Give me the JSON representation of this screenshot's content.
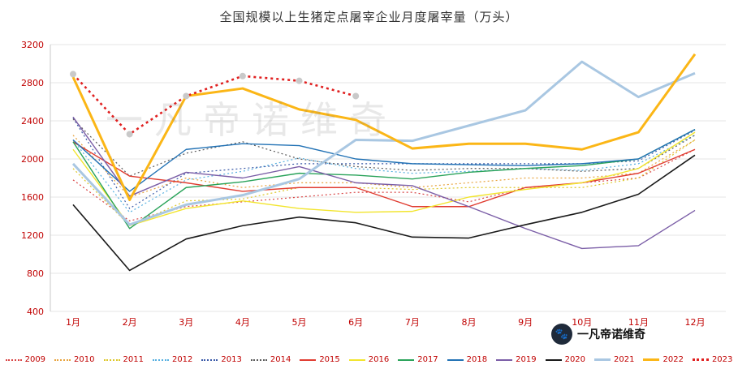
{
  "watermark": "一凡帝诺维奇",
  "logo": {
    "text": "一凡帝诺维奇",
    "icon_glyph": "🐾"
  },
  "chart_data": {
    "type": "line",
    "title": "全国规模以上生猪定点屠宰企业月度屠宰量（万头）",
    "categories": [
      "1月",
      "2月",
      "3月",
      "4月",
      "5月",
      "6月",
      "7月",
      "8月",
      "9月",
      "10月",
      "11月",
      "12月"
    ],
    "ylim": [
      400,
      3200
    ],
    "ytick_step": 400,
    "grid": true,
    "legend_position": "bottom",
    "axis_label_color": "#c00000",
    "gridline_color": "#e4e4e4",
    "series": [
      {
        "name": "2009",
        "color": "#d94545",
        "style": "dotted",
        "width": 1.2,
        "values": [
          1780,
          1350,
          1500,
          1550,
          1600,
          1650,
          1650,
          1550,
          1700,
          1750,
          1800,
          2100
        ]
      },
      {
        "name": "2010",
        "color": "#e8a33d",
        "style": "dotted",
        "width": 1.2,
        "values": [
          2250,
          1600,
          1800,
          1700,
          1750,
          1750,
          1700,
          1750,
          1800,
          1800,
          1850,
          2200
        ]
      },
      {
        "name": "2011",
        "color": "#ddc728",
        "style": "dotted",
        "width": 1.2,
        "values": [
          1900,
          1300,
          1560,
          1580,
          1700,
          1700,
          1680,
          1700,
          1700,
          1700,
          1800,
          2200
        ]
      },
      {
        "name": "2012",
        "color": "#56b0e0",
        "style": "dotted",
        "width": 1.2,
        "values": [
          2200,
          1440,
          1780,
          1870,
          2010,
          1900,
          1850,
          1870,
          1900,
          1880,
          1950,
          2250
        ]
      },
      {
        "name": "2013",
        "color": "#3a5aa8",
        "style": "dotted",
        "width": 1.2,
        "values": [
          2430,
          1480,
          1850,
          1900,
          1950,
          1950,
          1950,
          1950,
          1950,
          1950,
          1980,
          2300
        ]
      },
      {
        "name": "2014",
        "color": "#5a5a5a",
        "style": "dotted",
        "width": 1.2,
        "values": [
          2420,
          1820,
          2060,
          2180,
          2000,
          1920,
          1880,
          1900,
          1900,
          1870,
          1900,
          2250
        ]
      },
      {
        "name": "2015",
        "color": "#e03c31",
        "style": "solid",
        "width": 1.4,
        "values": [
          2180,
          1820,
          1750,
          1660,
          1700,
          1700,
          1500,
          1500,
          1700,
          1750,
          1850,
          2100
        ]
      },
      {
        "name": "2016",
        "color": "#f2e52e",
        "style": "solid",
        "width": 1.4,
        "values": [
          2100,
          1300,
          1480,
          1560,
          1480,
          1440,
          1450,
          1600,
          1680,
          1750,
          1900,
          2280
        ]
      },
      {
        "name": "2017",
        "color": "#2aa35a",
        "style": "solid",
        "width": 1.4,
        "values": [
          2180,
          1270,
          1700,
          1760,
          1850,
          1830,
          1790,
          1860,
          1900,
          1930,
          2000,
          2310
        ]
      },
      {
        "name": "2018",
        "color": "#2272b5",
        "style": "solid",
        "width": 1.4,
        "values": [
          2200,
          1660,
          2100,
          2160,
          2140,
          2000,
          1950,
          1940,
          1930,
          1950,
          2000,
          2310
        ]
      },
      {
        "name": "2019",
        "color": "#7b5ea7",
        "style": "solid",
        "width": 1.4,
        "values": [
          2440,
          1610,
          1860,
          1800,
          1920,
          1750,
          1720,
          1500,
          1270,
          1060,
          1090,
          1460
        ]
      },
      {
        "name": "2020",
        "color": "#1a1a1a",
        "style": "solid",
        "width": 1.6,
        "values": [
          1520,
          830,
          1160,
          1300,
          1390,
          1330,
          1180,
          1170,
          1310,
          1440,
          1630,
          2040
        ]
      },
      {
        "name": "2021",
        "color": "#a9c7e2",
        "style": "solid",
        "width": 3,
        "values": [
          1950,
          1310,
          1520,
          1620,
          1790,
          2200,
          2190,
          2350,
          2510,
          3020,
          2650,
          2900
        ]
      },
      {
        "name": "2022",
        "color": "#fbb616",
        "style": "solid",
        "width": 3,
        "values": [
          2860,
          1570,
          2660,
          2740,
          2520,
          2410,
          2110,
          2160,
          2160,
          2100,
          2280,
          3100
        ]
      },
      {
        "name": "2023",
        "color": "#e02020",
        "style": "dotted",
        "width": 2.6,
        "markers": true,
        "marker_color": "#c9c9c9",
        "values": [
          2890,
          2260,
          2660,
          2870,
          2820,
          2660
        ]
      }
    ]
  }
}
